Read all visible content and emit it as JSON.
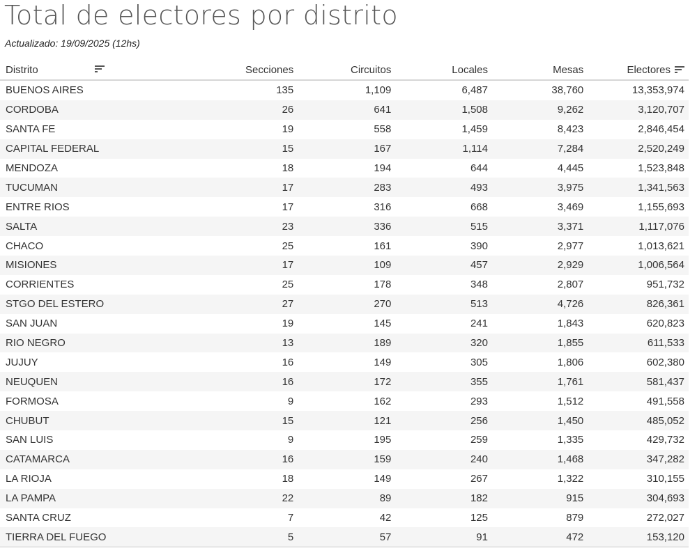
{
  "title": "Total de electores por distrito",
  "subtitle": "Actualizado: 19/09/2025 (12hs)",
  "icons": {
    "sort": "sort-descending-icon"
  },
  "columns": [
    "Distrito",
    "Secciones",
    "Circuitos",
    "Locales",
    "Mesas",
    "Electores"
  ],
  "rows": [
    [
      "BUENOS AIRES",
      "135",
      "1,109",
      "6,487",
      "38,760",
      "13,353,974"
    ],
    [
      "CORDOBA",
      "26",
      "641",
      "1,508",
      "9,262",
      "3,120,707"
    ],
    [
      "SANTA FE",
      "19",
      "558",
      "1,459",
      "8,423",
      "2,846,454"
    ],
    [
      "CAPITAL FEDERAL",
      "15",
      "167",
      "1,114",
      "7,284",
      "2,520,249"
    ],
    [
      "MENDOZA",
      "18",
      "194",
      "644",
      "4,445",
      "1,523,848"
    ],
    [
      "TUCUMAN",
      "17",
      "283",
      "493",
      "3,975",
      "1,341,563"
    ],
    [
      "ENTRE RIOS",
      "17",
      "316",
      "668",
      "3,469",
      "1,155,693"
    ],
    [
      "SALTA",
      "23",
      "336",
      "515",
      "3,371",
      "1,117,076"
    ],
    [
      "CHACO",
      "25",
      "161",
      "390",
      "2,977",
      "1,013,621"
    ],
    [
      "MISIONES",
      "17",
      "109",
      "457",
      "2,929",
      "1,006,564"
    ],
    [
      "CORRIENTES",
      "25",
      "178",
      "348",
      "2,807",
      "951,732"
    ],
    [
      "STGO DEL ESTERO",
      "27",
      "270",
      "513",
      "4,726",
      "826,361"
    ],
    [
      "SAN JUAN",
      "19",
      "145",
      "241",
      "1,843",
      "620,823"
    ],
    [
      "RIO NEGRO",
      "13",
      "189",
      "320",
      "1,855",
      "611,533"
    ],
    [
      "JUJUY",
      "16",
      "149",
      "305",
      "1,806",
      "602,380"
    ],
    [
      "NEUQUEN",
      "16",
      "172",
      "355",
      "1,761",
      "581,437"
    ],
    [
      "FORMOSA",
      "9",
      "162",
      "293",
      "1,512",
      "491,558"
    ],
    [
      "CHUBUT",
      "15",
      "121",
      "256",
      "1,450",
      "485,052"
    ],
    [
      "SAN LUIS",
      "9",
      "195",
      "259",
      "1,335",
      "429,732"
    ],
    [
      "CATAMARCA",
      "16",
      "159",
      "240",
      "1,468",
      "347,282"
    ],
    [
      "LA RIOJA",
      "18",
      "149",
      "267",
      "1,322",
      "310,155"
    ],
    [
      "LA PAMPA",
      "22",
      "89",
      "182",
      "915",
      "304,693"
    ],
    [
      "SANTA CRUZ",
      "7",
      "42",
      "125",
      "879",
      "272,027"
    ],
    [
      "TIERRA DEL FUEGO",
      "5",
      "57",
      "91",
      "472",
      "153,120"
    ]
  ]
}
